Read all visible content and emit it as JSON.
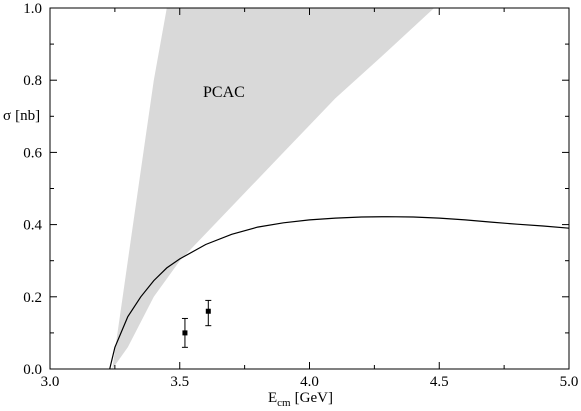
{
  "chart_data": {
    "type": "line",
    "xlabel_main": "E",
    "xlabel_sub": "cm",
    "xlabel_unit": "[GeV]",
    "ylabel_main": "σ",
    "ylabel_unit": "[nb]",
    "xlim": [
      3.0,
      5.0
    ],
    "ylim": [
      0.0,
      1.0
    ],
    "x_ticks": [
      "3.0",
      "3.5",
      "4.0",
      "4.5",
      "5.0"
    ],
    "y_ticks": [
      "0.0",
      "0.2",
      "0.4",
      "0.6",
      "0.8",
      "1.0"
    ],
    "x_tick_values": [
      3.0,
      3.5,
      4.0,
      4.5,
      5.0
    ],
    "y_tick_values": [
      0.0,
      0.2,
      0.4,
      0.6,
      0.8,
      1.0
    ],
    "annotation": "PCAC",
    "grid": false,
    "band": {
      "color": "#d9d9d9",
      "upper": [
        [
          3.24,
          0.0
        ],
        [
          3.28,
          0.2
        ],
        [
          3.31,
          0.35
        ],
        [
          3.34,
          0.5
        ],
        [
          3.37,
          0.65
        ],
        [
          3.4,
          0.8
        ],
        [
          3.45,
          1.0
        ]
      ],
      "lower": [
        [
          4.48,
          1.0
        ],
        [
          4.3,
          0.88
        ],
        [
          4.1,
          0.75
        ],
        [
          3.9,
          0.6
        ],
        [
          3.7,
          0.45
        ],
        [
          3.5,
          0.3
        ],
        [
          3.4,
          0.2
        ],
        [
          3.3,
          0.06
        ],
        [
          3.24,
          0.0
        ]
      ]
    },
    "series": [
      {
        "style": "solid",
        "color": "#000000",
        "x": [
          3.23,
          3.25,
          3.3,
          3.35,
          3.4,
          3.45,
          3.5,
          3.6,
          3.7,
          3.8,
          3.9,
          4.0,
          4.1,
          4.2,
          4.3,
          4.4,
          4.5,
          4.6,
          4.7,
          4.8,
          4.9,
          5.0
        ],
        "y": [
          0.0,
          0.06,
          0.145,
          0.2,
          0.245,
          0.28,
          0.305,
          0.345,
          0.373,
          0.393,
          0.405,
          0.413,
          0.418,
          0.421,
          0.422,
          0.421,
          0.418,
          0.413,
          0.407,
          0.401,
          0.396,
          0.39
        ]
      }
    ],
    "points": [
      {
        "x": 3.52,
        "y": 0.1,
        "yerr_low": 0.06,
        "yerr_high": 0.14
      },
      {
        "x": 3.61,
        "y": 0.16,
        "yerr_low": 0.12,
        "yerr_high": 0.19
      }
    ]
  }
}
